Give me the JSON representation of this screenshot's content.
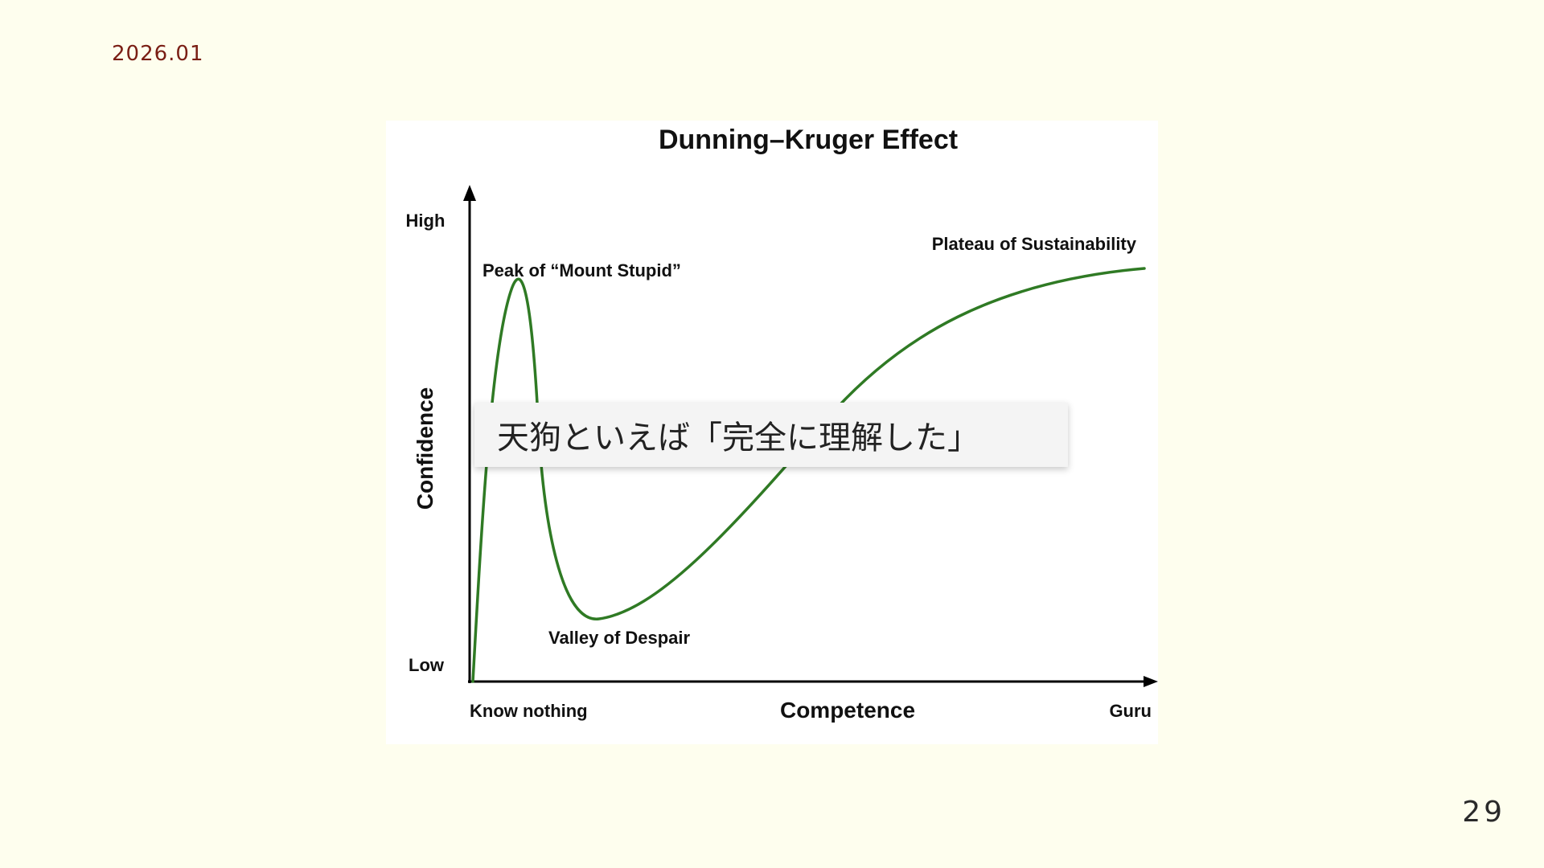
{
  "slide": {
    "date": "2026.01",
    "page_number": "29"
  },
  "callout": {
    "text": "天狗といえば「完全に理解した」"
  },
  "diagram": {
    "title": "Dunning–Kruger Effect",
    "x_axis": {
      "label": "Competence",
      "left_label": "Know nothing",
      "right_label": "Guru"
    },
    "y_axis": {
      "label": "Confidence",
      "high_label": "High",
      "low_label": "Low"
    },
    "annotations": {
      "peak": "Peak of “Mount Stupid”",
      "valley": "Valley of Despair",
      "plateau": "Plateau of Sustainability"
    },
    "curve_color": "#2f7a24",
    "axis_color": "#000000"
  }
}
